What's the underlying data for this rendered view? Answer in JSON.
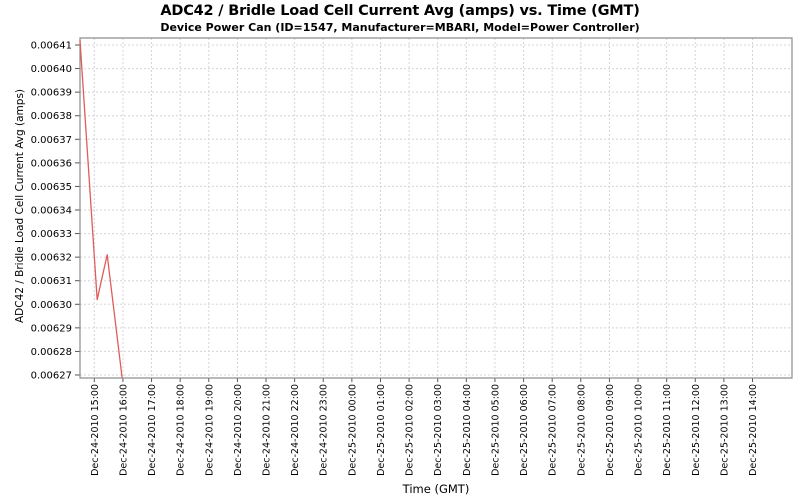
{
  "chart_data": {
    "type": "line",
    "title": "ADC42 / Bridle Load Cell Current Avg (amps) vs. Time (GMT)",
    "subtitle": "Device Power Can (ID=1547, Manufacturer=MBARI, Model=Power Controller)",
    "xlabel": "Time (GMT)",
    "ylabel": "ADC42 / Bridle Load Cell Current Avg (amps)",
    "grid": true,
    "legend": false,
    "x_tick_labels": [
      "Dec-24-2010 15:00",
      "Dec-24-2010 16:00",
      "Dec-24-2010 17:00",
      "Dec-24-2010 18:00",
      "Dec-24-2010 19:00",
      "Dec-24-2010 20:00",
      "Dec-24-2010 21:00",
      "Dec-24-2010 22:00",
      "Dec-24-2010 23:00",
      "Dec-25-2010 00:00",
      "Dec-25-2010 01:00",
      "Dec-25-2010 02:00",
      "Dec-25-2010 03:00",
      "Dec-25-2010 04:00",
      "Dec-25-2010 05:00",
      "Dec-25-2010 06:00",
      "Dec-25-2010 07:00",
      "Dec-25-2010 08:00",
      "Dec-25-2010 09:00",
      "Dec-25-2010 10:00",
      "Dec-25-2010 11:00",
      "Dec-25-2010 12:00",
      "Dec-25-2010 13:00",
      "Dec-25-2010 14:00"
    ],
    "x_range_hours_from_first_tick": [
      -0.5,
      24.38
    ],
    "y_tick_labels": [
      "0.00627",
      "0.00628",
      "0.00629",
      "0.00630",
      "0.00631",
      "0.00632",
      "0.00633",
      "0.00634",
      "0.00635",
      "0.00636",
      "0.00637",
      "0.00638",
      "0.00639",
      "0.00640",
      "0.00641"
    ],
    "y_ticks": [
      0.00627,
      0.00628,
      0.00629,
      0.0063,
      0.00631,
      0.00632,
      0.00633,
      0.00634,
      0.00635,
      0.00636,
      0.00637,
      0.00638,
      0.00639,
      0.0064,
      0.00641
    ],
    "ylim": [
      0.00627,
      0.00641
    ],
    "series": [
      {
        "color": "#e05c5c",
        "points_t_hours_v_amps": [
          {
            "t": -0.5,
            "v": 0.006412
          },
          {
            "t": 0.1,
            "v": 0.006302
          },
          {
            "t": 0.45,
            "v": 0.006321
          },
          {
            "t": 0.97,
            "v": 0.006269
          }
        ]
      }
    ],
    "colors": {
      "line": "#e05c5c",
      "grid": "#d4d4dc",
      "plot_border": "#8a8a8a",
      "tick": "#565656",
      "text": "#000000",
      "background": "#ffffff"
    }
  }
}
